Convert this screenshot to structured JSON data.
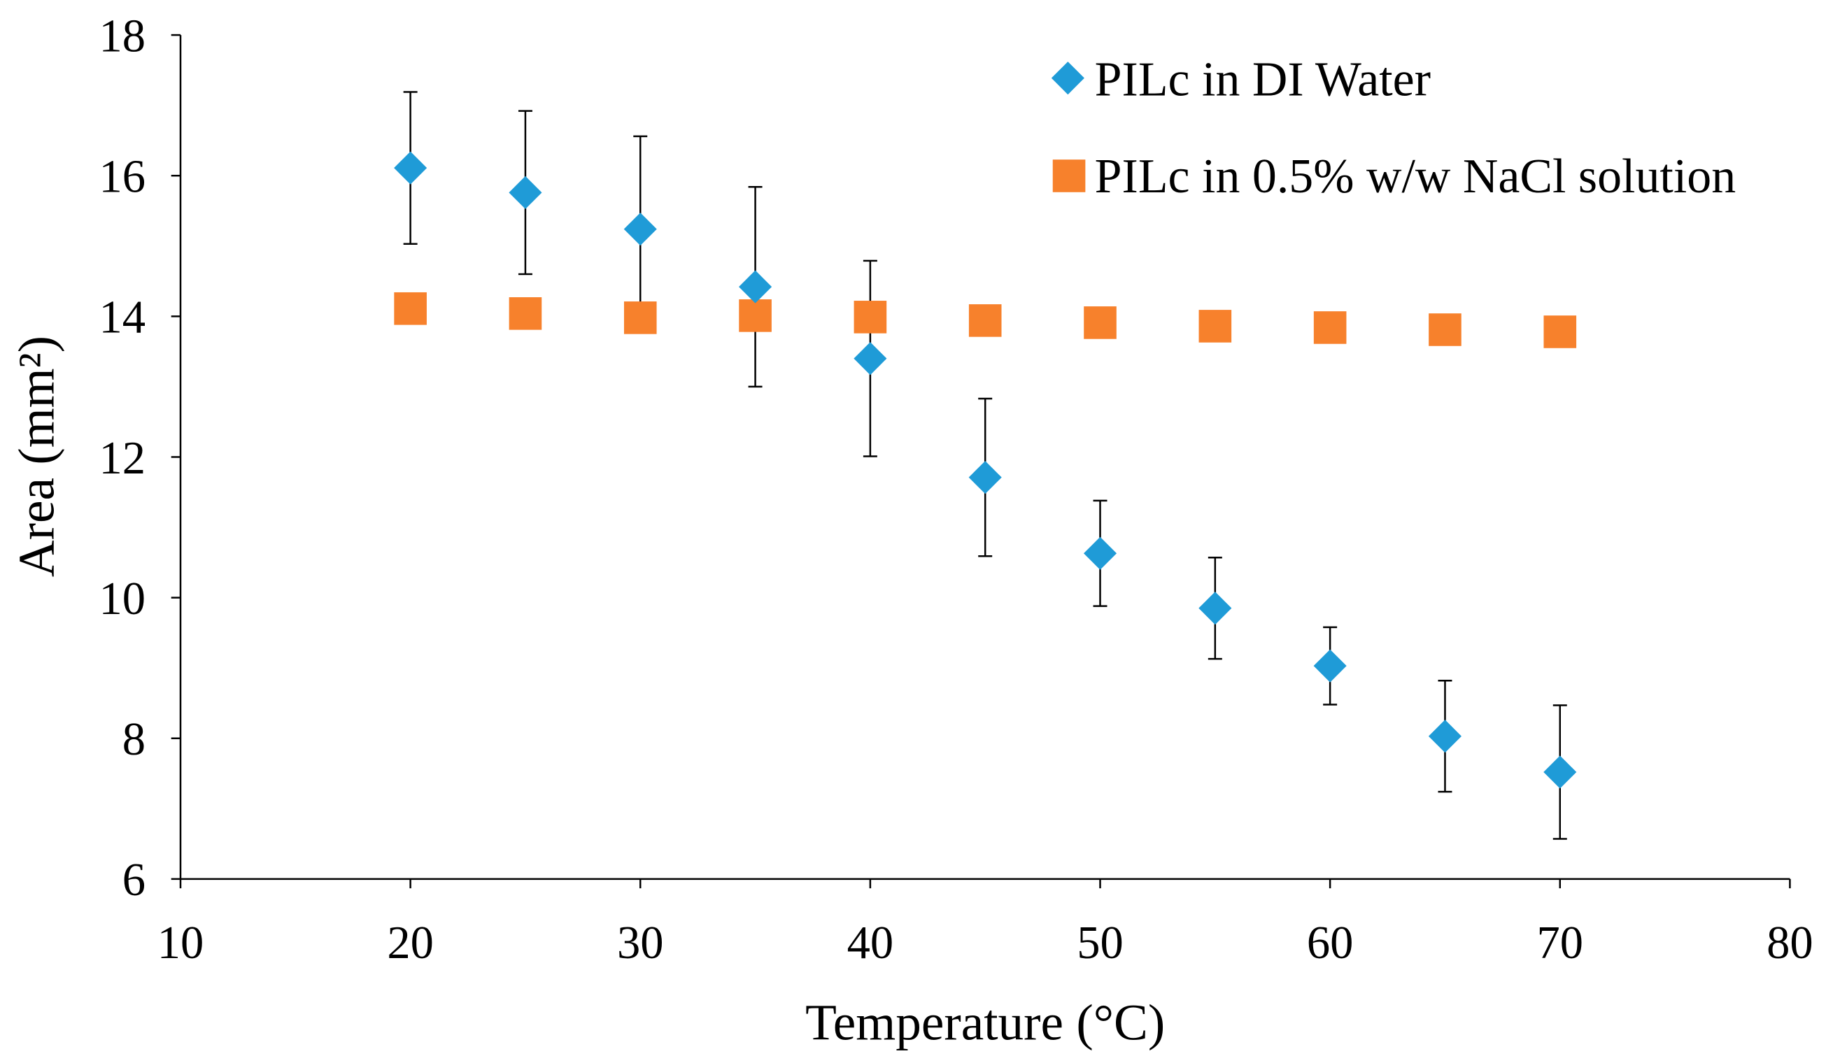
{
  "chart_data": {
    "type": "scatter",
    "title": "",
    "xlabel": "Temperature (°C)",
    "ylabel": "Area (mm²)",
    "xlim": [
      10,
      80
    ],
    "ylim": [
      6,
      18
    ],
    "xticks": [
      10,
      20,
      30,
      40,
      50,
      60,
      70,
      80
    ],
    "yticks": [
      6,
      8,
      10,
      12,
      14,
      16,
      18
    ],
    "xtick_labels": [
      "10",
      "20",
      "30",
      "40",
      "50",
      "60",
      "70",
      "80"
    ],
    "ytick_labels": [
      "6",
      "8",
      "10",
      "12",
      "14",
      "16",
      "18"
    ],
    "grid": false,
    "legend_position": "top-right",
    "series": [
      {
        "name": "PILc in DI Water",
        "marker": "diamond",
        "color": "#1f9bd7",
        "x": [
          20,
          25,
          30,
          35,
          40,
          45,
          50,
          55,
          60,
          65,
          70
        ],
        "y": [
          16.11,
          15.76,
          15.24,
          14.42,
          13.4,
          11.71,
          10.63,
          9.85,
          9.03,
          8.03,
          7.52
        ],
        "error": [
          1.08,
          1.16,
          1.32,
          1.42,
          1.39,
          1.12,
          0.75,
          0.72,
          0.55,
          0.79,
          0.95
        ]
      },
      {
        "name": "PILc in 0.5% w/w NaCl solution",
        "marker": "square",
        "color": "#f7812c",
        "x": [
          20,
          25,
          30,
          35,
          40,
          45,
          50,
          55,
          60,
          65,
          70
        ],
        "y": [
          14.11,
          14.04,
          13.98,
          14.01,
          13.99,
          13.94,
          13.91,
          13.86,
          13.84,
          13.81,
          13.78
        ]
      }
    ]
  }
}
